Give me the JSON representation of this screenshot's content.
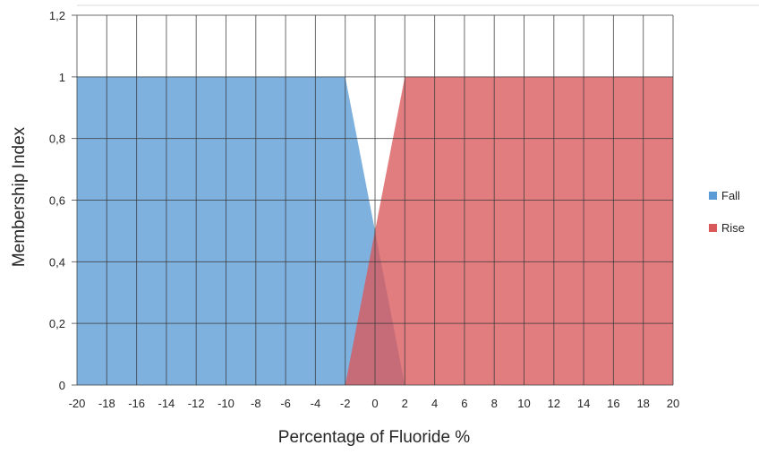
{
  "chart_data": {
    "type": "area",
    "xlabel": "Percentage of Fluoride %",
    "ylabel": "Membership Index",
    "xlim": [
      -20,
      20
    ],
    "ylim": [
      0,
      1.2
    ],
    "x_ticks": [
      "-20",
      "-18",
      "-16",
      "-14",
      "-12",
      "-10",
      "-8",
      "-6",
      "-4",
      "-2",
      "0",
      "2",
      "4",
      "6",
      "8",
      "10",
      "12",
      "14",
      "16",
      "18",
      "20"
    ],
    "y_ticks": [
      "0",
      "0,2",
      "0,4",
      "0,6",
      "0,8",
      "1",
      "1,2"
    ],
    "grid": true,
    "legend_position": "right",
    "series": [
      {
        "name": "Fall",
        "color": "#5b9bd5",
        "points": [
          [
            -20,
            0
          ],
          [
            -20,
            1
          ],
          [
            -2,
            1
          ],
          [
            2,
            0
          ]
        ]
      },
      {
        "name": "Rise",
        "color": "#d9595b",
        "points": [
          [
            -2,
            0
          ],
          [
            2,
            1
          ],
          [
            20,
            1
          ],
          [
            20,
            0
          ]
        ]
      }
    ]
  }
}
